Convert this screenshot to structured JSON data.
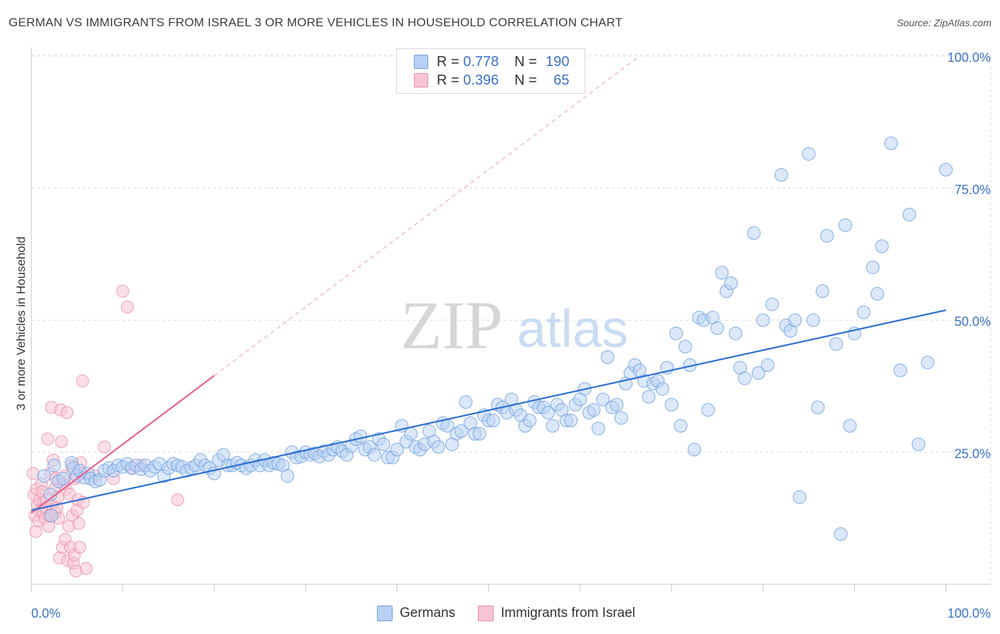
{
  "header": {
    "title": "GERMAN VS IMMIGRANTS FROM ISRAEL 3 OR MORE VEHICLES IN HOUSEHOLD CORRELATION CHART",
    "source": "Source: ZipAtlas.com"
  },
  "legend_top": {
    "row1": {
      "r_label": "R = ",
      "r_value": "0.778",
      "n_label": "N = ",
      "n_value": "190"
    },
    "row2": {
      "r_label": "R = ",
      "r_value": "0.396",
      "n_label": "N = ",
      "n_value": "65"
    }
  },
  "legend_bottom": {
    "germans": "Germans",
    "israel": "Immigrants from Israel"
  },
  "watermark": {
    "zip": "ZIP",
    "atlas": "atlas"
  },
  "colors": {
    "blue_fill": "#b7d1f3",
    "blue_stroke": "#6f9fe0",
    "blue_line": "#2f6fd0",
    "pink_fill": "#f8c4d4",
    "pink_stroke": "#ea8aa8",
    "pink_line": "#e8628a",
    "grid": "#dcdcdc",
    "tick_text": "#3a72c8"
  },
  "chart_data": {
    "type": "scatter",
    "title": "GERMAN VS IMMIGRANTS FROM ISRAEL 3 OR MORE VEHICLES IN HOUSEHOLD CORRELATION CHART",
    "xlabel": "",
    "ylabel": "3 or more Vehicles in Household",
    "xlim": [
      0,
      100
    ],
    "ylim": [
      0,
      100
    ],
    "x_tick_labels": [
      "0.0%",
      "100.0%"
    ],
    "y_tick_labels": [
      "25.0%",
      "50.0%",
      "75.0%",
      "100.0%"
    ],
    "y_ticks": [
      25,
      50,
      75,
      100
    ],
    "grid": true,
    "legend_position": "top-center",
    "series": [
      {
        "name": "Germans",
        "R": 0.778,
        "N": 190,
        "trend": {
          "x": [
            0,
            100
          ],
          "y": [
            14.0,
            51.9
          ]
        },
        "points": [
          [
            2.2,
            13
          ],
          [
            2.1,
            17
          ],
          [
            1.4,
            20.5
          ],
          [
            2.5,
            22.5
          ],
          [
            3,
            19.5
          ],
          [
            3.5,
            20
          ],
          [
            4.4,
            23
          ],
          [
            4.6,
            22
          ],
          [
            5,
            20.5
          ],
          [
            5.3,
            21.5
          ],
          [
            5.8,
            20.2
          ],
          [
            6.2,
            21
          ],
          [
            6.5,
            20
          ],
          [
            7,
            19.5
          ],
          [
            7.5,
            19.8
          ],
          [
            8,
            21.5
          ],
          [
            8.5,
            22
          ],
          [
            9,
            21.5
          ],
          [
            9.5,
            22.5
          ],
          [
            10,
            22.2
          ],
          [
            10.5,
            22.8
          ],
          [
            11,
            22
          ],
          [
            11.5,
            22.5
          ],
          [
            12,
            21.8
          ],
          [
            12.5,
            22.5
          ],
          [
            13,
            21.5
          ],
          [
            13.5,
            22.2
          ],
          [
            14,
            22.8
          ],
          [
            14.5,
            20.5
          ],
          [
            15,
            22
          ],
          [
            15.5,
            22.8
          ],
          [
            16,
            22.5
          ],
          [
            16.5,
            22.2
          ],
          [
            17,
            21.5
          ],
          [
            17.5,
            22
          ],
          [
            18,
            22.5
          ],
          [
            18.5,
            23.5
          ],
          [
            19,
            22.5
          ],
          [
            19.5,
            22
          ],
          [
            20,
            21
          ],
          [
            20.5,
            23.5
          ],
          [
            21,
            24.5
          ],
          [
            21.5,
            22.5
          ],
          [
            22,
            22.5
          ],
          [
            22.5,
            23
          ],
          [
            23,
            22.5
          ],
          [
            23.5,
            22
          ],
          [
            24,
            22.5
          ],
          [
            24.5,
            23.5
          ],
          [
            25,
            22.5
          ],
          [
            25.5,
            23.5
          ],
          [
            26,
            22.5
          ],
          [
            26.5,
            23
          ],
          [
            27,
            22.8
          ],
          [
            27.5,
            22.5
          ],
          [
            28,
            20.5
          ],
          [
            28.5,
            25
          ],
          [
            29,
            24
          ],
          [
            29.5,
            24.2
          ],
          [
            30,
            25
          ],
          [
            30.5,
            24.5
          ],
          [
            31,
            24.8
          ],
          [
            31.5,
            24.2
          ],
          [
            32,
            25.2
          ],
          [
            32.5,
            24.5
          ],
          [
            33,
            25.5
          ],
          [
            33.5,
            26
          ],
          [
            34,
            25.2
          ],
          [
            34.5,
            24.5
          ],
          [
            35,
            26.2
          ],
          [
            35.5,
            27.5
          ],
          [
            36,
            28
          ],
          [
            36.5,
            25.5
          ],
          [
            37,
            26
          ],
          [
            37.5,
            24.5
          ],
          [
            38,
            27.5
          ],
          [
            38.5,
            26.5
          ],
          [
            39,
            24
          ],
          [
            39.5,
            24
          ],
          [
            40,
            25.5
          ],
          [
            40.5,
            30
          ],
          [
            41,
            27
          ],
          [
            41.5,
            28.5
          ],
          [
            42,
            26
          ],
          [
            42.5,
            25.5
          ],
          [
            43,
            26.5
          ],
          [
            43.5,
            29
          ],
          [
            44,
            27
          ],
          [
            44.5,
            26
          ],
          [
            45,
            30.5
          ],
          [
            45.5,
            30
          ],
          [
            46,
            26.5
          ],
          [
            46.5,
            28.5
          ],
          [
            47,
            29
          ],
          [
            47.5,
            34.5
          ],
          [
            48,
            30.5
          ],
          [
            48.5,
            28.5
          ],
          [
            49,
            28.5
          ],
          [
            49.5,
            32
          ],
          [
            50,
            31
          ],
          [
            50.5,
            31
          ],
          [
            51,
            34
          ],
          [
            51.5,
            33.5
          ],
          [
            52,
            32.5
          ],
          [
            52.5,
            35
          ],
          [
            53,
            33
          ],
          [
            53.5,
            32
          ],
          [
            54,
            30
          ],
          [
            54.5,
            31
          ],
          [
            55,
            34.5
          ],
          [
            55.5,
            33.5
          ],
          [
            56,
            33.5
          ],
          [
            56.5,
            32.5
          ],
          [
            57,
            30
          ],
          [
            57.5,
            34
          ],
          [
            58,
            33
          ],
          [
            58.5,
            31
          ],
          [
            59,
            31
          ],
          [
            59.5,
            34
          ],
          [
            60,
            35
          ],
          [
            60.5,
            37
          ],
          [
            61,
            32.5
          ],
          [
            61.5,
            33
          ],
          [
            62,
            29.5
          ],
          [
            62.5,
            35
          ],
          [
            63,
            43
          ],
          [
            63.5,
            33.5
          ],
          [
            64,
            34
          ],
          [
            64.5,
            31.5
          ],
          [
            65,
            38
          ],
          [
            65.5,
            40
          ],
          [
            66,
            41.5
          ],
          [
            66.5,
            40.5
          ],
          [
            67,
            38.5
          ],
          [
            67.5,
            35.5
          ],
          [
            68,
            38
          ],
          [
            68.5,
            38.5
          ],
          [
            69,
            37
          ],
          [
            69.5,
            41
          ],
          [
            70,
            34
          ],
          [
            70.5,
            47.5
          ],
          [
            71,
            30
          ],
          [
            71.5,
            45
          ],
          [
            72,
            41.5
          ],
          [
            72.5,
            25.5
          ],
          [
            73,
            50.5
          ],
          [
            73.5,
            50
          ],
          [
            74,
            33
          ],
          [
            74.5,
            50.5
          ],
          [
            75,
            48.5
          ],
          [
            75.5,
            59
          ],
          [
            76,
            55.5
          ],
          [
            76.5,
            57
          ],
          [
            77,
            47.5
          ],
          [
            77.5,
            41
          ],
          [
            78,
            39
          ],
          [
            79,
            66.5
          ],
          [
            79.5,
            40
          ],
          [
            80,
            50
          ],
          [
            80.5,
            41.5
          ],
          [
            81,
            53
          ],
          [
            82,
            77.5
          ],
          [
            82.5,
            49
          ],
          [
            83,
            48
          ],
          [
            83.5,
            50
          ],
          [
            84,
            16.5
          ],
          [
            85,
            81.5
          ],
          [
            85.5,
            50
          ],
          [
            86,
            33.5
          ],
          [
            86.5,
            55.5
          ],
          [
            87,
            66
          ],
          [
            88,
            45.5
          ],
          [
            88.5,
            9.5
          ],
          [
            89,
            68
          ],
          [
            89.5,
            30
          ],
          [
            90,
            47.5
          ],
          [
            91,
            51.5
          ],
          [
            92,
            60
          ],
          [
            92.5,
            55
          ],
          [
            93,
            64
          ],
          [
            94,
            83.5
          ],
          [
            95,
            40.5
          ],
          [
            96,
            70
          ],
          [
            97,
            26.5
          ],
          [
            98,
            42
          ],
          [
            100,
            78.5
          ]
        ]
      },
      {
        "name": "Immigrants from Israel",
        "R": 0.396,
        "N": 65,
        "trend": {
          "x": [
            0,
            20
          ],
          "y": [
            13.5,
            39.5
          ]
        },
        "trend_extension": {
          "x": [
            20,
            66.5
          ],
          "y": [
            39.5,
            100
          ]
        },
        "points": [
          [
            0.2,
            21
          ],
          [
            0.3,
            17
          ],
          [
            0.4,
            13
          ],
          [
            0.5,
            10
          ],
          [
            0.6,
            18
          ],
          [
            0.7,
            15
          ],
          [
            0.8,
            12
          ],
          [
            0.9,
            16
          ],
          [
            1,
            14
          ],
          [
            1.1,
            19
          ],
          [
            1.2,
            17.5
          ],
          [
            1.3,
            13.5
          ],
          [
            1.4,
            15.5
          ],
          [
            1.5,
            12.5
          ],
          [
            1.6,
            14.5
          ],
          [
            1.7,
            16
          ],
          [
            1.8,
            27.5
          ],
          [
            1.9,
            11
          ],
          [
            2,
            13
          ],
          [
            2.1,
            21
          ],
          [
            2.2,
            33.5
          ],
          [
            2.3,
            15
          ],
          [
            2.4,
            23.5
          ],
          [
            2.5,
            18
          ],
          [
            2.6,
            13.5
          ],
          [
            2.7,
            20
          ],
          [
            2.8,
            14.5
          ],
          [
            2.9,
            16.5
          ],
          [
            3,
            12.5
          ],
          [
            3.1,
            5
          ],
          [
            3.2,
            33
          ],
          [
            3.3,
            27
          ],
          [
            3.4,
            7
          ],
          [
            3.5,
            19
          ],
          [
            3.6,
            20.5
          ],
          [
            3.7,
            8.5
          ],
          [
            3.8,
            18
          ],
          [
            3.9,
            32.5
          ],
          [
            4,
            4.5
          ],
          [
            4.1,
            11
          ],
          [
            4.2,
            17
          ],
          [
            4.3,
            7
          ],
          [
            4.4,
            22.5
          ],
          [
            4.5,
            13
          ],
          [
            4.6,
            4
          ],
          [
            4.7,
            5.5
          ],
          [
            4.8,
            20
          ],
          [
            4.9,
            2.5
          ],
          [
            5,
            14
          ],
          [
            5.1,
            16
          ],
          [
            5.2,
            11.5
          ],
          [
            5.3,
            7
          ],
          [
            5.4,
            23
          ],
          [
            5.5,
            21
          ],
          [
            5.6,
            38.5
          ],
          [
            5.7,
            15.5
          ],
          [
            6,
            3
          ],
          [
            7,
            20.5
          ],
          [
            8,
            26
          ],
          [
            9,
            20
          ],
          [
            10,
            55.5
          ],
          [
            10.5,
            52.5
          ],
          [
            11,
            22
          ],
          [
            12,
            22.5
          ],
          [
            16,
            16
          ]
        ]
      }
    ]
  }
}
